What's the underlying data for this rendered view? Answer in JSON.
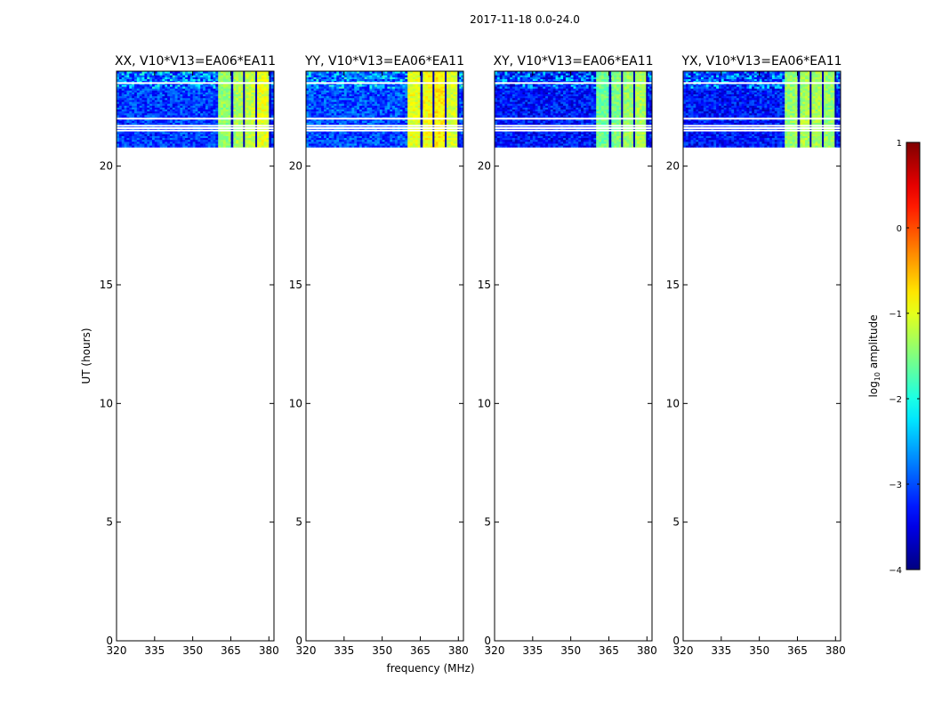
{
  "figure": {
    "suptitle": "2017-11-18 0.0-24.0",
    "shared_xlabel": "frequency (MHz)",
    "shared_ylabel": "UT (hours)"
  },
  "chart_data": {
    "type": "heatmap",
    "title": "2017-11-18 0.0-24.0",
    "xlabel": "frequency (MHz)",
    "ylabel": "UT (hours)",
    "xlim": [
      320,
      382
    ],
    "ylim": [
      0,
      24
    ],
    "xticks": [
      "320",
      "335",
      "350",
      "365",
      "380"
    ],
    "xtick_values": [
      320,
      335,
      350,
      365,
      380
    ],
    "yticks": [
      "0",
      "5",
      "10",
      "15",
      "20"
    ],
    "ytick_values": [
      0,
      5,
      10,
      15,
      20
    ],
    "data_time_range": [
      20.8,
      24.0
    ],
    "flagged_times": [
      23.5,
      22.0,
      21.7,
      21.6,
      21.5
    ],
    "colorbar": {
      "label": "log10 amplitude",
      "label_prefix": "log",
      "label_sub": "10",
      "label_suffix": " amplitude",
      "range": [
        -4,
        1
      ],
      "ticks": [
        "−4",
        "−3",
        "−2",
        "−1",
        "0",
        "1"
      ],
      "tick_values": [
        -4,
        -3,
        -2,
        -1,
        0,
        1
      ],
      "colormap": "jet"
    },
    "panels": [
      {
        "name": "xx",
        "title": "XX, V10*V13=EA06*EA11",
        "background_level": -3.1,
        "rfi_bands": [
          [
            360.5,
            365.0,
            -1.4
          ],
          [
            366.0,
            370.0,
            -1.3
          ],
          [
            370.5,
            374.5,
            -1.2
          ],
          [
            375.5,
            379.5,
            -1.0
          ]
        ],
        "gap_channels": [
          365.5,
          370.2,
          375.0,
          380.5
        ]
      },
      {
        "name": "yy",
        "title": "YY, V10*V13=EA06*EA11",
        "background_level": -3.0,
        "rfi_bands": [
          [
            360.5,
            365.0,
            -1.0
          ],
          [
            366.0,
            370.0,
            -0.9
          ],
          [
            370.5,
            374.5,
            -0.8
          ],
          [
            375.5,
            379.5,
            -1.1
          ]
        ],
        "gap_channels": [
          365.5,
          370.2,
          375.0,
          380.0
        ]
      },
      {
        "name": "xy",
        "title": "XY, V10*V13=EA06*EA11",
        "background_level": -3.3,
        "rfi_bands": [
          [
            360.5,
            365.0,
            -1.6
          ],
          [
            366.0,
            370.0,
            -1.5
          ],
          [
            370.5,
            374.5,
            -1.4
          ],
          [
            375.5,
            379.5,
            -1.3
          ]
        ],
        "gap_channels": [
          365.5,
          370.2,
          375.0,
          380.0
        ]
      },
      {
        "name": "yx",
        "title": "YX, V10*V13=EA06*EA11",
        "background_level": -3.3,
        "rfi_bands": [
          [
            360.5,
            365.0,
            -1.4
          ],
          [
            366.0,
            370.0,
            -1.3
          ],
          [
            370.5,
            374.5,
            -1.3
          ],
          [
            375.5,
            379.5,
            -1.4
          ]
        ],
        "gap_channels": [
          365.5,
          370.2,
          375.0,
          380.0
        ]
      }
    ]
  },
  "colors": {
    "flag_line": "#ffffff",
    "axis": "#000000"
  }
}
